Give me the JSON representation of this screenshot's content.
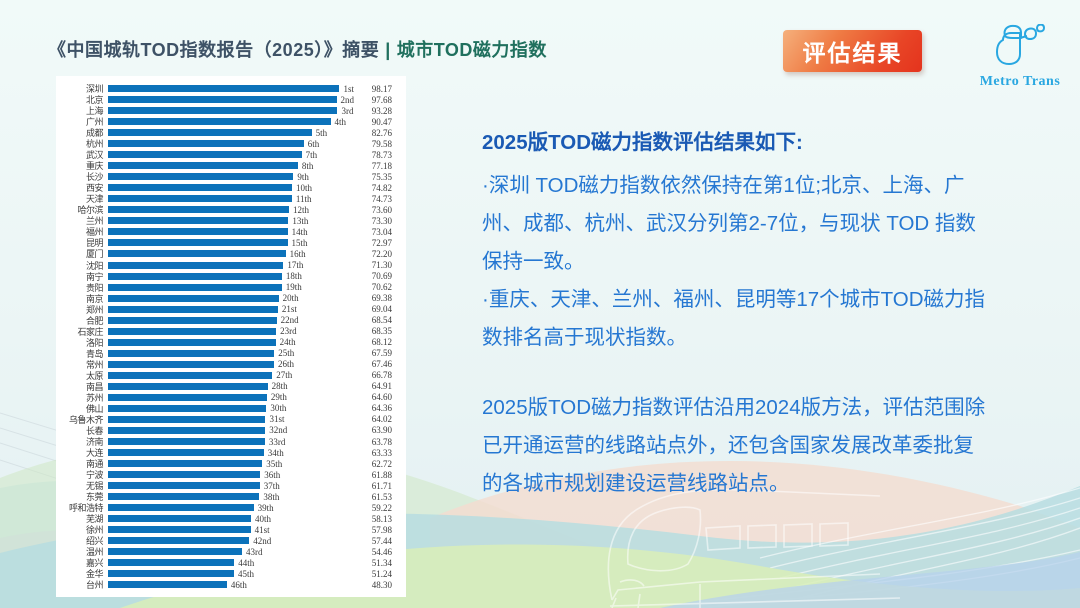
{
  "page": {
    "title_part1": "《中国城轨TOD指数报告（2025）》摘要",
    "title_separator": "|",
    "title_part2": "城市TOD磁力指数",
    "badge_label": "评估结果",
    "logo_text": "Metro Trans"
  },
  "summary": {
    "heading": "2025版TOD磁力指数评估结果如下:",
    "paragraphs": [
      "·深圳 TOD磁力指数依然保持在第1位;北京、上海、广州、成都、杭州、武汉分列第2-7位，与现状 TOD 指数保持一致。",
      "·重庆、天津、兰州、福州、昆明等17个城市TOD磁力指数排名高于现状指数。",
      "2025版TOD磁力指数评估沿用2024版方法，评估范围除已开通运营的线路站点外，还包含国家发展改革委批复的各城市规划建设运营线路站点。"
    ]
  },
  "chart_data": {
    "type": "bar",
    "orientation": "horizontal",
    "title": "城市TOD磁力指数",
    "xlim": [
      0,
      100
    ],
    "grid": false,
    "bar_color": "#0c72ba",
    "categories": [
      "深圳",
      "北京",
      "上海",
      "广州",
      "成都",
      "杭州",
      "武汉",
      "重庆",
      "长沙",
      "西安",
      "天津",
      "哈尔滨",
      "兰州",
      "福州",
      "昆明",
      "厦门",
      "沈阳",
      "南宁",
      "贵阳",
      "南京",
      "郑州",
      "合肥",
      "石家庄",
      "洛阳",
      "青岛",
      "常州",
      "太原",
      "南昌",
      "苏州",
      "佛山",
      "乌鲁木齐",
      "长春",
      "济南",
      "大连",
      "南通",
      "宁波",
      "无锡",
      "东莞",
      "呼和浩特",
      "芜湖",
      "徐州",
      "绍兴",
      "温州",
      "嘉兴",
      "金华",
      "台州"
    ],
    "ranks": [
      "1st",
      "2nd",
      "3rd",
      "4th",
      "5th",
      "6th",
      "7th",
      "8th",
      "9th",
      "10th",
      "11th",
      "12th",
      "13th",
      "14th",
      "15th",
      "16th",
      "17th",
      "18th",
      "19th",
      "20th",
      "21st",
      "22nd",
      "23rd",
      "24th",
      "25th",
      "26th",
      "27th",
      "28th",
      "29th",
      "30th",
      "31st",
      "32nd",
      "33rd",
      "34th",
      "35th",
      "36th",
      "37th",
      "38th",
      "39th",
      "40th",
      "41st",
      "42nd",
      "43rd",
      "44th",
      "45th",
      "46th"
    ],
    "values": [
      98.17,
      97.68,
      93.28,
      90.47,
      82.76,
      79.58,
      78.73,
      77.18,
      75.35,
      74.82,
      74.73,
      73.6,
      73.3,
      73.04,
      72.97,
      72.2,
      71.3,
      70.69,
      70.62,
      69.38,
      69.04,
      68.54,
      68.35,
      68.12,
      67.59,
      67.46,
      66.78,
      64.91,
      64.6,
      64.36,
      64.02,
      63.9,
      63.78,
      63.33,
      62.72,
      61.88,
      61.71,
      61.53,
      59.22,
      58.13,
      57.98,
      57.44,
      54.46,
      51.34,
      51.24,
      48.3
    ]
  },
  "colors": {
    "bar": "#0c72ba",
    "title_primary": "#3e5266",
    "title_accent": "#20705e",
    "summary_heading": "#1a5ab4",
    "summary_body": "#2577d2",
    "badge_gradient_start": "#f5b07c",
    "badge_gradient_end": "#e4331d",
    "logo_cyan": "#29a7e1",
    "panel_bg": "#ffffff"
  }
}
